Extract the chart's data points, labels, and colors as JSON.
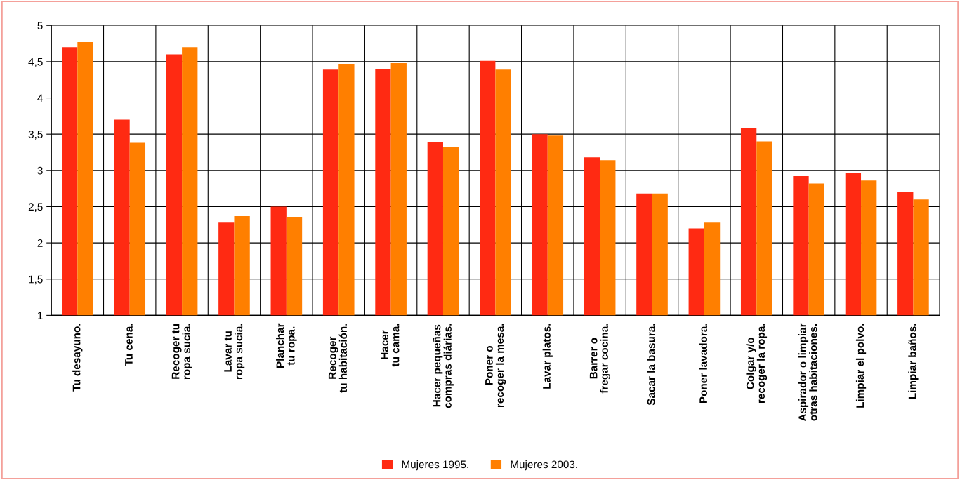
{
  "chart_data": {
    "type": "bar",
    "categories": [
      "Tu desayuno.",
      "Tu cena.",
      "Recoger tu\nropa sucia.",
      "Lavar tu\nropa sucia.",
      "Planchar\ntu ropa.",
      "Recoger\ntu habitación.",
      "Hacer\ntu cama.",
      "Hacer pequeñas\ncompras diárias.",
      "Poner o\nrecoger la mesa.",
      "Lavar platos.",
      "Barrer o\nfregar cocina.",
      "Sacar la basura.",
      "Poner lavadora.",
      "Colgar y/o\nrecoger la ropa.",
      "Aspirador o limpiar\notras habitaciones.",
      "Limpiar el polvo.",
      "Limpiar baños."
    ],
    "series": [
      {
        "name": "Mujeres 1995.",
        "color": "#ff2a12",
        "values": [
          4.7,
          3.7,
          4.6,
          2.28,
          2.5,
          4.39,
          4.4,
          3.39,
          4.51,
          3.5,
          3.18,
          2.68,
          2.2,
          3.58,
          2.92,
          2.97,
          2.7
        ]
      },
      {
        "name": "Mujeres 2003.",
        "color": "#ff7f00",
        "values": [
          4.77,
          3.38,
          4.7,
          2.37,
          2.36,
          4.47,
          4.48,
          3.32,
          4.39,
          3.48,
          3.14,
          2.68,
          2.28,
          3.4,
          2.82,
          2.86,
          2.6
        ]
      }
    ],
    "ylim": [
      1,
      5
    ],
    "yticks": [
      1,
      {
        "value": 1.5,
        "label": "1,5"
      },
      2,
      {
        "value": 2.5,
        "label": "2,5"
      },
      3,
      {
        "value": 3.5,
        "label": "3,5"
      },
      4,
      {
        "value": 4.5,
        "label": "4,5"
      },
      5
    ],
    "grid": true,
    "legend": "bottom"
  }
}
